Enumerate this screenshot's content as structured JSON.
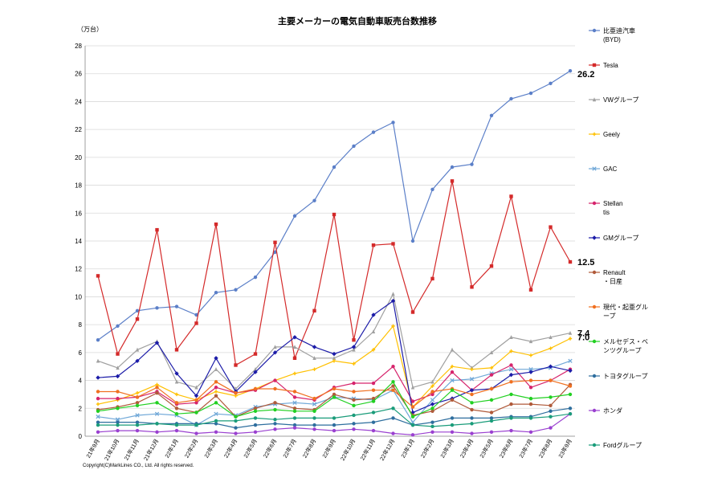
{
  "chart_data": {
    "type": "line",
    "title": "主要メーカーの電気自動車販売台数推移",
    "unit_label": "（万台）",
    "ylim": [
      0,
      28
    ],
    "ytick_step": 2,
    "grid": "horizontal",
    "legend_position": "right",
    "copyright": "Copyright(C)MarkLines CO., Ltd. All rights reserved.",
    "categories": [
      "21年9月",
      "21年10月",
      "21年11月",
      "21年12月",
      "22年1月",
      "22年2月",
      "22年3月",
      "22年4月",
      "22年5月",
      "22年6月",
      "22年7月",
      "22年8月",
      "22年9月",
      "22年10月",
      "22年11月",
      "22年12月",
      "23年1月",
      "23年2月",
      "23年3月",
      "23年4月",
      "23年5月",
      "23年6月",
      "23年7月",
      "23年8月",
      "23年9月"
    ],
    "series": [
      {
        "name": "比亜迪汽車\n(BYD)",
        "color": "#5b7fc8",
        "marker": "circle",
        "values": [
          6.9,
          7.9,
          9.0,
          9.2,
          9.3,
          8.7,
          10.3,
          10.5,
          11.4,
          13.2,
          15.8,
          16.9,
          19.3,
          20.8,
          21.8,
          22.5,
          14.0,
          17.7,
          19.3,
          19.5,
          23.0,
          24.2,
          24.6,
          25.3,
          26.2
        ]
      },
      {
        "name": "Tesla",
        "color": "#d42a2a",
        "marker": "square",
        "values": [
          11.5,
          5.9,
          8.4,
          14.8,
          6.2,
          8.1,
          15.2,
          5.1,
          5.9,
          13.9,
          5.6,
          9.0,
          15.9,
          6.9,
          13.7,
          13.8,
          8.9,
          11.3,
          18.3,
          10.7,
          12.2,
          17.2,
          10.5,
          15.0,
          12.5
        ]
      },
      {
        "name": "VWグループ",
        "color": "#a0a0a0",
        "marker": "triangle",
        "values": [
          5.4,
          4.9,
          6.2,
          6.8,
          3.9,
          3.5,
          4.8,
          3.4,
          4.8,
          6.4,
          6.4,
          5.6,
          5.6,
          6.2,
          7.5,
          10.2,
          3.5,
          3.9,
          6.2,
          4.9,
          6.0,
          7.1,
          6.8,
          7.1,
          7.4
        ]
      },
      {
        "name": "Geely",
        "color": "#ffc000",
        "marker": "cross",
        "values": [
          2.3,
          2.6,
          3.1,
          3.7,
          3.0,
          2.6,
          3.2,
          2.9,
          3.4,
          4.0,
          4.5,
          4.8,
          5.4,
          5.2,
          6.2,
          7.9,
          2.1,
          3.6,
          5.0,
          4.8,
          4.9,
          6.1,
          5.8,
          6.3,
          7.0
        ]
      },
      {
        "name": "GAC",
        "color": "#70a8d8",
        "marker": "x",
        "values": [
          1.4,
          1.2,
          1.5,
          1.6,
          1.5,
          0.8,
          1.6,
          1.5,
          2.1,
          2.3,
          2.4,
          2.3,
          2.8,
          2.7,
          2.6,
          3.3,
          1.0,
          2.6,
          4.0,
          4.1,
          4.5,
          4.8,
          4.8,
          4.9,
          5.4
        ]
      },
      {
        "name": "Stellantis",
        "color": "#d6246c",
        "marker": "circle",
        "values": [
          2.7,
          2.7,
          2.8,
          3.2,
          2.3,
          2.4,
          3.5,
          3.1,
          3.3,
          4.0,
          2.8,
          2.6,
          3.5,
          3.8,
          3.8,
          5.0,
          2.5,
          3.0,
          4.6,
          3.3,
          4.4,
          5.1,
          3.5,
          4.0,
          4.8
        ]
      },
      {
        "name": "GMグループ",
        "color": "#1c1ca8",
        "marker": "diamond",
        "values": [
          4.2,
          4.3,
          5.4,
          6.7,
          4.5,
          2.9,
          5.6,
          3.2,
          4.6,
          6.0,
          7.1,
          6.4,
          5.9,
          6.4,
          8.7,
          9.7,
          1.7,
          2.3,
          2.7,
          3.3,
          3.4,
          4.4,
          4.6,
          5.0,
          4.7
        ]
      },
      {
        "name": "Renault・日産",
        "color": "#b05a3a",
        "marker": "circle",
        "values": [
          1.9,
          2.1,
          2.4,
          3.1,
          2.0,
          1.7,
          2.9,
          1.4,
          2.0,
          2.4,
          2.0,
          1.9,
          3.0,
          2.6,
          2.7,
          3.6,
          1.5,
          1.8,
          2.6,
          1.9,
          1.7,
          2.3,
          2.3,
          2.2,
          3.7
        ]
      },
      {
        "name": "現代・起亜グループ",
        "color": "#f07020",
        "marker": "circle",
        "values": [
          3.2,
          3.2,
          2.8,
          3.5,
          2.4,
          2.6,
          3.9,
          3.1,
          3.4,
          3.4,
          3.2,
          2.7,
          3.4,
          3.2,
          3.3,
          3.3,
          2.1,
          3.2,
          3.4,
          3.0,
          3.4,
          3.9,
          4.0,
          4.0,
          3.6
        ]
      },
      {
        "name": "メルセデス・ベンツグループ",
        "color": "#22d022",
        "marker": "circle",
        "values": [
          1.8,
          2.0,
          2.2,
          2.4,
          1.6,
          1.7,
          2.4,
          1.4,
          1.8,
          1.9,
          1.8,
          1.8,
          2.8,
          2.2,
          2.5,
          3.9,
          1.4,
          2.0,
          3.3,
          2.4,
          2.6,
          3.0,
          2.7,
          2.8,
          3.0
        ]
      },
      {
        "name": "トヨタグループ",
        "color": "#2e6e9e",
        "marker": "circle",
        "values": [
          1.0,
          1.0,
          1.0,
          0.9,
          0.9,
          0.9,
          0.9,
          0.6,
          0.8,
          0.9,
          0.8,
          0.8,
          0.8,
          0.9,
          1.0,
          1.3,
          0.8,
          1.0,
          1.3,
          1.3,
          1.3,
          1.4,
          1.4,
          1.8,
          2.0
        ]
      },
      {
        "name": "ホンダ",
        "color": "#9a40d0",
        "marker": "circle",
        "values": [
          0.3,
          0.4,
          0.4,
          0.3,
          0.4,
          0.2,
          0.3,
          0.2,
          0.3,
          0.5,
          0.6,
          0.5,
          0.4,
          0.5,
          0.4,
          0.2,
          0.1,
          0.3,
          0.3,
          0.2,
          0.3,
          0.4,
          0.3,
          0.6,
          1.6
        ]
      },
      {
        "name": "Fordグループ",
        "color": "#1a9c7a",
        "marker": "circle",
        "values": [
          0.8,
          0.8,
          0.8,
          0.9,
          0.8,
          0.8,
          1.1,
          1.1,
          1.3,
          1.2,
          1.3,
          1.3,
          1.3,
          1.5,
          1.7,
          2.0,
          0.8,
          0.7,
          0.8,
          0.9,
          1.1,
          1.3,
          1.3,
          1.4,
          1.6
        ]
      }
    ],
    "annotations": [
      {
        "series": 0,
        "text": "26.2"
      },
      {
        "series": 1,
        "text": "12.5"
      },
      {
        "series": 2,
        "text": "7.4"
      },
      {
        "series": 3,
        "text": "7.0"
      }
    ]
  }
}
